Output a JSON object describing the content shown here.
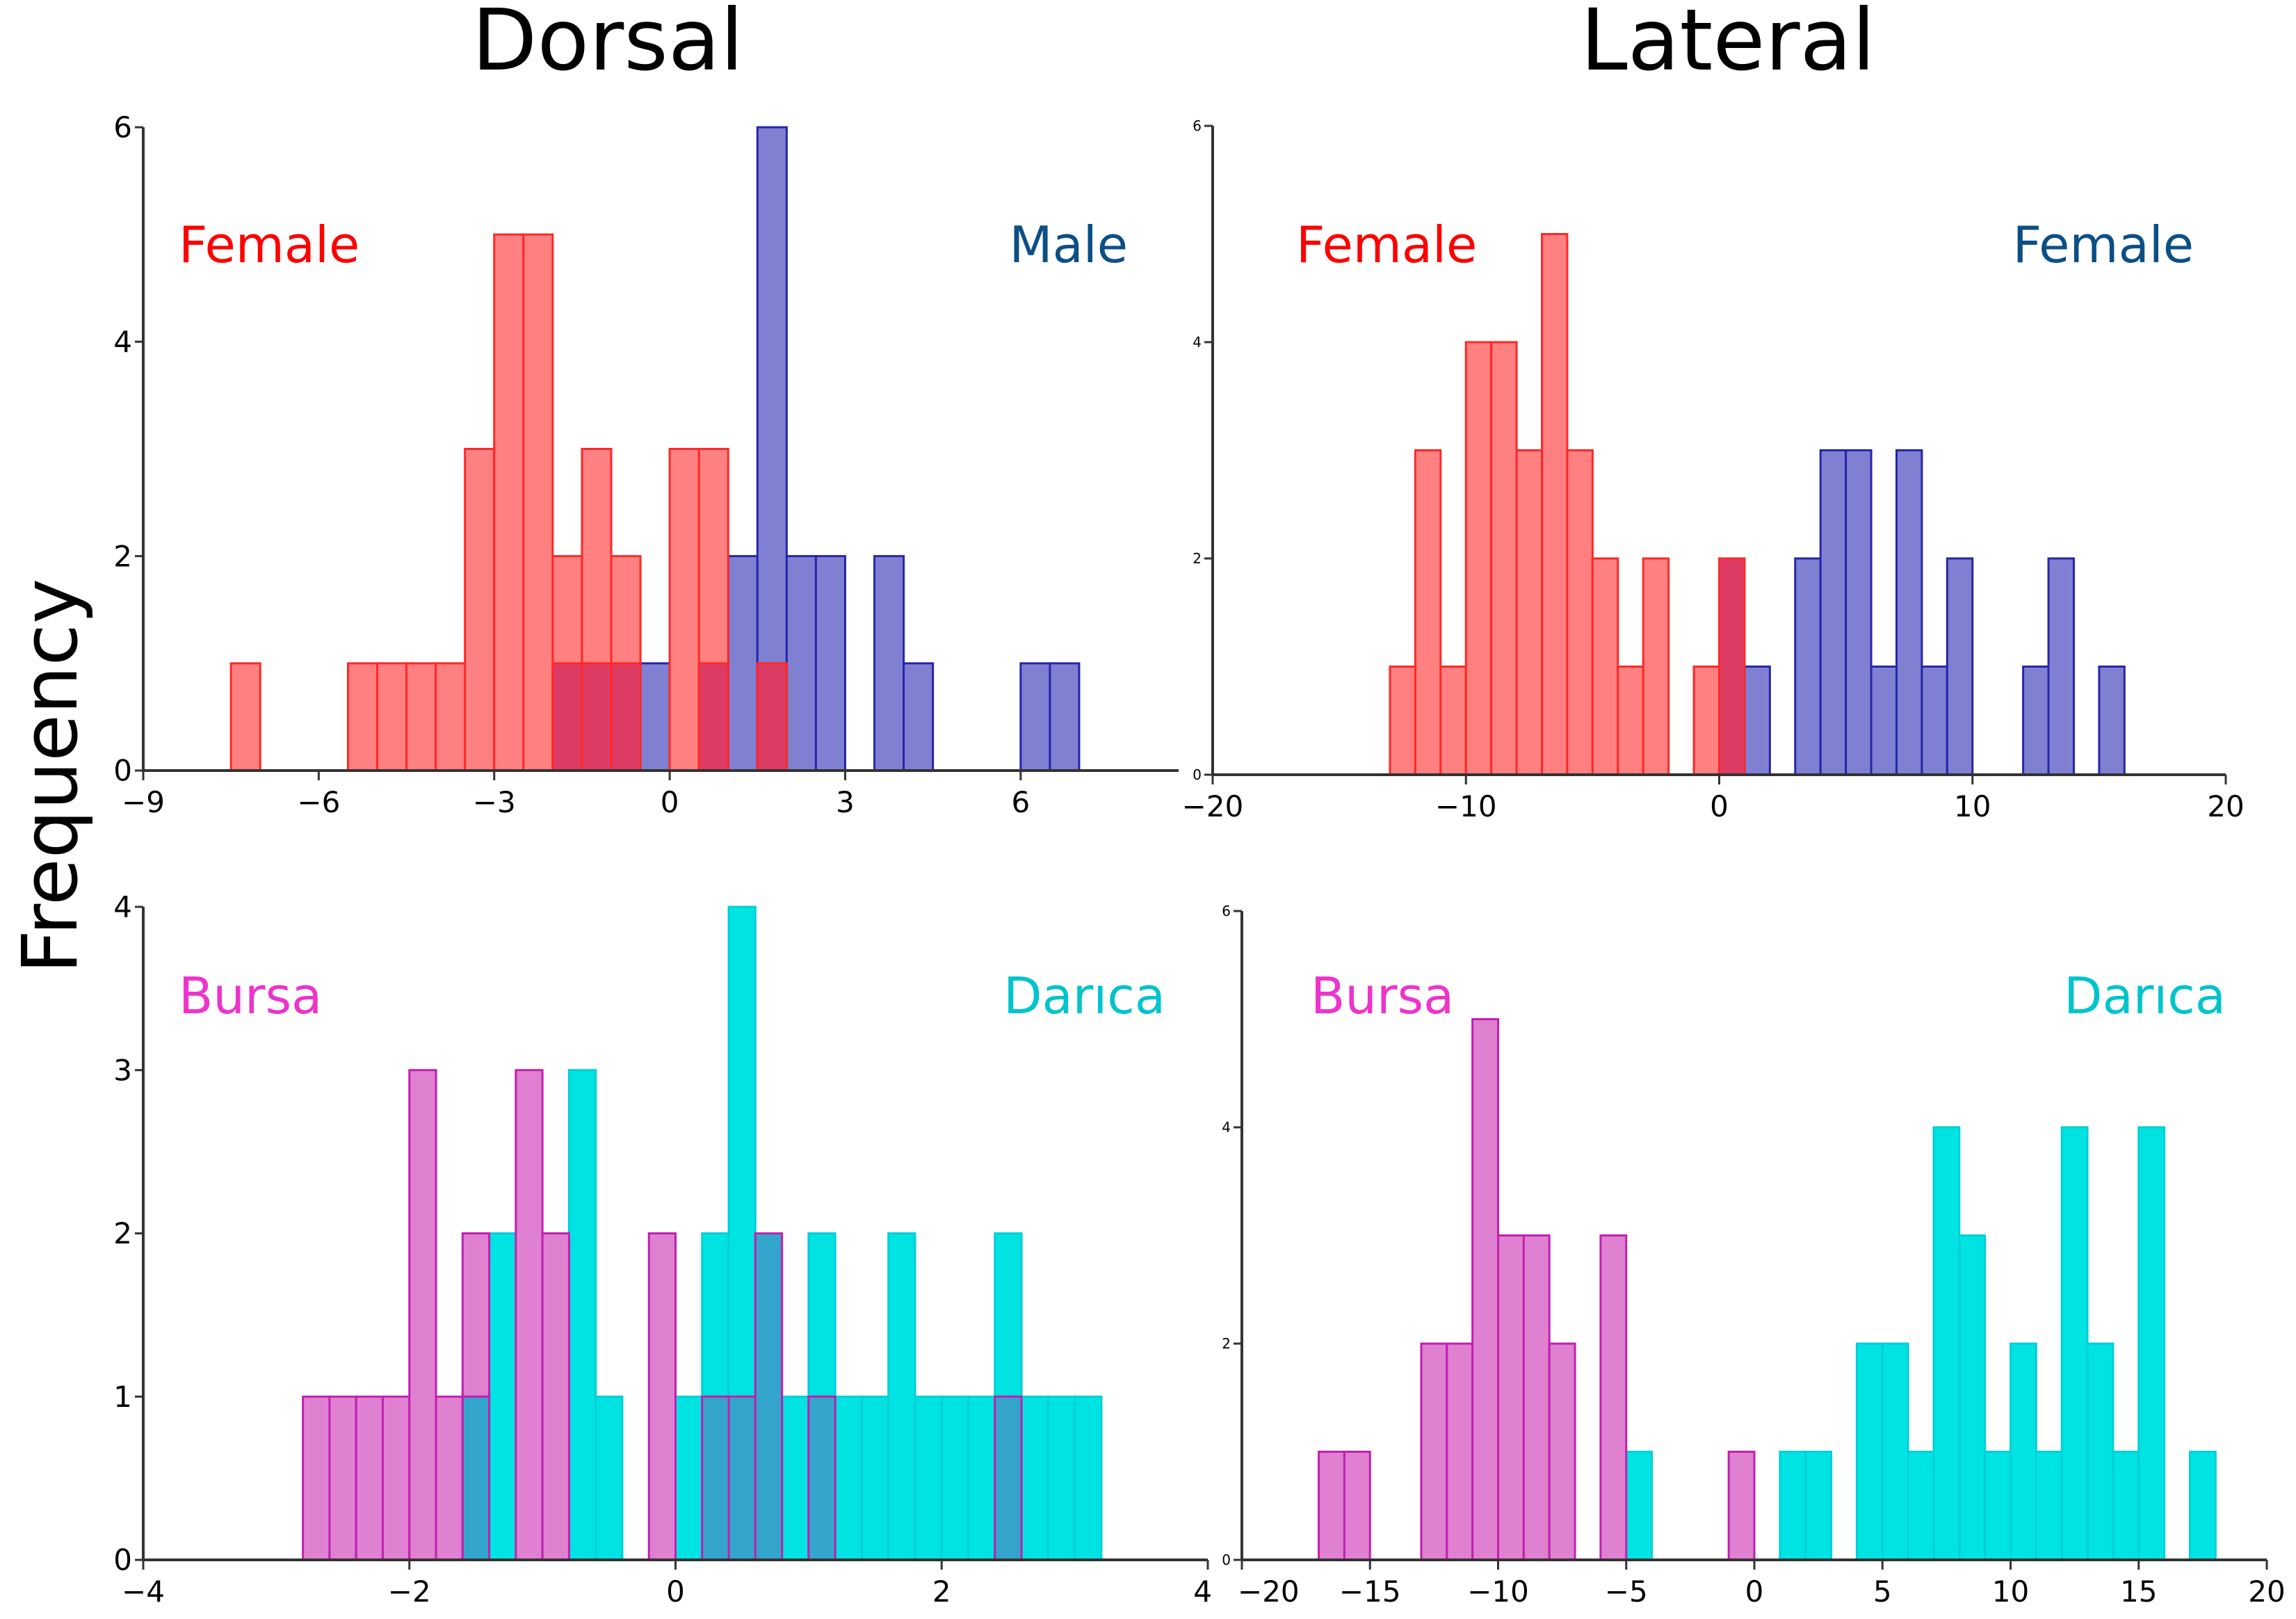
{
  "titles": {
    "dorsal": "Dorsal",
    "lateral": "Lateral",
    "ylabel": "Frequency"
  },
  "colors": {
    "female_red": "#ff0000",
    "male_blue": "#0b4f86",
    "bursa_magenta": "#ee33cc",
    "darica_cyan": "#00c4cc"
  },
  "chart_data": [
    {
      "type": "bar",
      "subtype": "histogram",
      "panel": "Dorsal - sex",
      "title": "Dorsal",
      "ylabel": "Frequency",
      "xlim": [
        -9,
        8.7
      ],
      "ylim": [
        0,
        6
      ],
      "xticks": [
        -9,
        -6,
        -3,
        0,
        3,
        6
      ],
      "yticks": [
        0,
        2,
        4,
        6
      ],
      "bin_width": 0.5,
      "series": [
        {
          "name": "Male",
          "label_pos": "top-right",
          "bins": [
            [
              -2,
              1
            ],
            [
              -1.5,
              1
            ],
            [
              -1,
              1
            ],
            [
              -0.5,
              1
            ],
            [
              0.5,
              1
            ],
            [
              1,
              2
            ],
            [
              1.5,
              6
            ],
            [
              2,
              2
            ],
            [
              2.5,
              2
            ],
            [
              3.5,
              2
            ],
            [
              4,
              1
            ],
            [
              6,
              1
            ],
            [
              6.5,
              1
            ]
          ]
        },
        {
          "name": "Female",
          "label_pos": "top-left",
          "bins": [
            [
              -7.5,
              1
            ],
            [
              -5.5,
              1
            ],
            [
              -5,
              1
            ],
            [
              -4.5,
              1
            ],
            [
              -4,
              1
            ],
            [
              -3.5,
              3
            ],
            [
              -3,
              5
            ],
            [
              -2.5,
              5
            ],
            [
              -2,
              2
            ],
            [
              -1.5,
              3
            ],
            [
              -1,
              2
            ],
            [
              0,
              3
            ],
            [
              0.5,
              3
            ],
            [
              1.5,
              1
            ]
          ]
        }
      ]
    },
    {
      "type": "bar",
      "subtype": "histogram",
      "panel": "Lateral - sex",
      "title": "Lateral",
      "ylabel": "Frequency",
      "xlim": [
        -20,
        20
      ],
      "ylim": [
        0,
        6
      ],
      "xticks": [
        -20,
        -10,
        0,
        10,
        20
      ],
      "yticks": [
        0,
        2,
        4,
        6
      ],
      "bin_width": 1,
      "series": [
        {
          "name": "Female",
          "label_pos": "top-right",
          "bins": [
            [
              0,
              2
            ],
            [
              1,
              1
            ],
            [
              3,
              2
            ],
            [
              4,
              3
            ],
            [
              5,
              3
            ],
            [
              6,
              1
            ],
            [
              7,
              3
            ],
            [
              8,
              1
            ],
            [
              9,
              2
            ],
            [
              12,
              1
            ],
            [
              13,
              2
            ],
            [
              15,
              1
            ]
          ]
        },
        {
          "name": "Female",
          "label_pos": "top-left",
          "bins": [
            [
              -13,
              1
            ],
            [
              -12,
              3
            ],
            [
              -11,
              1
            ],
            [
              -10,
              4
            ],
            [
              -9,
              4
            ],
            [
              -8,
              3
            ],
            [
              -7,
              5
            ],
            [
              -6,
              3
            ],
            [
              -5,
              2
            ],
            [
              -4,
              1
            ],
            [
              -3,
              2
            ],
            [
              -1,
              1
            ],
            [
              0,
              2
            ]
          ]
        }
      ]
    },
    {
      "type": "bar",
      "subtype": "histogram",
      "panel": "Dorsal - location",
      "title": "",
      "ylabel": "Frequency",
      "xlim": [
        -4,
        4
      ],
      "ylim": [
        0,
        4
      ],
      "xticks": [
        -4,
        -2,
        0,
        2,
        4
      ],
      "yticks": [
        0,
        1,
        2,
        3,
        4
      ],
      "bin_width": 0.2,
      "series": [
        {
          "name": "Darıca",
          "label_pos": "top-right",
          "bins": [
            [
              -1.6,
              1
            ],
            [
              -1.4,
              2
            ],
            [
              -0.8,
              3
            ],
            [
              -0.6,
              1
            ],
            [
              0,
              1
            ],
            [
              0.2,
              2
            ],
            [
              0.4,
              4
            ],
            [
              0.6,
              2
            ],
            [
              0.8,
              1
            ],
            [
              1.0,
              2
            ],
            [
              1.2,
              1
            ],
            [
              1.4,
              1
            ],
            [
              1.6,
              2
            ],
            [
              1.8,
              1
            ],
            [
              2.0,
              1
            ],
            [
              2.2,
              1
            ],
            [
              2.4,
              2
            ],
            [
              2.6,
              1
            ],
            [
              2.8,
              1
            ],
            [
              3.0,
              1
            ]
          ]
        },
        {
          "name": "Bursa",
          "label_pos": "top-left",
          "bins": [
            [
              -2.8,
              1
            ],
            [
              -2.6,
              1
            ],
            [
              -2.4,
              1
            ],
            [
              -2.2,
              1
            ],
            [
              -2.0,
              3
            ],
            [
              -1.8,
              1
            ],
            [
              -1.6,
              2
            ],
            [
              -1.2,
              3
            ],
            [
              -1.0,
              2
            ],
            [
              -0.2,
              2
            ],
            [
              0.2,
              1
            ],
            [
              0.4,
              1
            ],
            [
              0.6,
              2
            ],
            [
              1.0,
              1
            ],
            [
              2.4,
              1
            ]
          ]
        }
      ]
    },
    {
      "type": "bar",
      "subtype": "histogram",
      "panel": "Lateral - location",
      "title": "",
      "ylabel": "Frequency",
      "xlim": [
        -20,
        20
      ],
      "ylim": [
        0,
        6
      ],
      "xticks": [
        -20,
        -15,
        -10,
        -5,
        0,
        5,
        10,
        15,
        20
      ],
      "yticks": [
        0,
        2,
        4,
        6
      ],
      "bin_width": 1,
      "series": [
        {
          "name": "Darıca",
          "label_pos": "top-right",
          "bins": [
            [
              -5,
              1
            ],
            [
              1,
              1
            ],
            [
              2,
              1
            ],
            [
              4,
              2
            ],
            [
              5,
              2
            ],
            [
              6,
              1
            ],
            [
              7,
              4
            ],
            [
              8,
              3
            ],
            [
              9,
              1
            ],
            [
              10,
              2
            ],
            [
              11,
              1
            ],
            [
              12,
              4
            ],
            [
              13,
              2
            ],
            [
              14,
              1
            ],
            [
              15,
              4
            ],
            [
              17,
              1
            ]
          ]
        },
        {
          "name": "Bursa",
          "label_pos": "top-left",
          "bins": [
            [
              -17,
              1
            ],
            [
              -16,
              1
            ],
            [
              -13,
              2
            ],
            [
              -12,
              2
            ],
            [
              -11,
              5
            ],
            [
              -10,
              3
            ],
            [
              -9,
              3
            ],
            [
              -8,
              2
            ],
            [
              -6,
              3
            ],
            [
              -1,
              1
            ]
          ]
        }
      ]
    }
  ]
}
